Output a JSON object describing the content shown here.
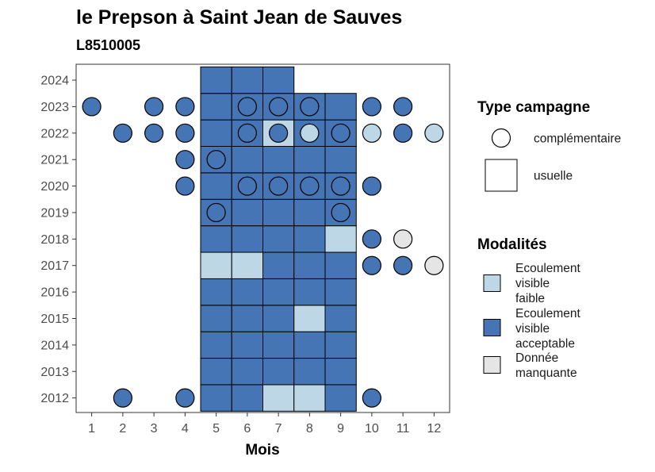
{
  "chart_data": {
    "type": "heatmap",
    "title": "le Prepson à Saint Jean de Sauves",
    "subtitle": "L8510005",
    "xlabel": "Mois",
    "x_ticks": [
      "1",
      "2",
      "3",
      "4",
      "5",
      "6",
      "7",
      "8",
      "9",
      "10",
      "11",
      "12"
    ],
    "y_ticks": [
      "2012",
      "2013",
      "2014",
      "2015",
      "2016",
      "2017",
      "2018",
      "2019",
      "2020",
      "2021",
      "2022",
      "2023",
      "2024"
    ],
    "xlim": [
      0.5,
      12.5
    ],
    "ylim": [
      2011.45,
      2024.6
    ],
    "grid": false,
    "colors": {
      "faible": "#bdd7e7",
      "acceptable": "#4575b4",
      "manquante": "#e5e5e5",
      "outline": "#000000"
    },
    "legend": {
      "type_title": "Type campagne",
      "type_items": [
        {
          "shape": "circle",
          "label": "complémentaire"
        },
        {
          "shape": "square",
          "label": "usuelle"
        }
      ],
      "mod_title": "Modalités",
      "mod_items": [
        {
          "key": "faible",
          "lines": [
            "Ecoulement",
            "visible",
            "faible"
          ]
        },
        {
          "key": "acceptable",
          "lines": [
            "Ecoulement",
            "visible",
            "acceptable"
          ]
        },
        {
          "key": "manquante",
          "lines": [
            "Donnée",
            "manquante"
          ]
        }
      ]
    },
    "tiles": [
      {
        "y": 2012,
        "m": 5,
        "v": "acceptable"
      },
      {
        "y": 2012,
        "m": 6,
        "v": "acceptable"
      },
      {
        "y": 2012,
        "m": 7,
        "v": "faible"
      },
      {
        "y": 2012,
        "m": 8,
        "v": "faible"
      },
      {
        "y": 2012,
        "m": 9,
        "v": "acceptable"
      },
      {
        "y": 2013,
        "m": 5,
        "v": "acceptable"
      },
      {
        "y": 2013,
        "m": 6,
        "v": "acceptable"
      },
      {
        "y": 2013,
        "m": 7,
        "v": "acceptable"
      },
      {
        "y": 2013,
        "m": 8,
        "v": "acceptable"
      },
      {
        "y": 2013,
        "m": 9,
        "v": "acceptable"
      },
      {
        "y": 2014,
        "m": 5,
        "v": "acceptable"
      },
      {
        "y": 2014,
        "m": 6,
        "v": "acceptable"
      },
      {
        "y": 2014,
        "m": 7,
        "v": "acceptable"
      },
      {
        "y": 2014,
        "m": 8,
        "v": "acceptable"
      },
      {
        "y": 2014,
        "m": 9,
        "v": "acceptable"
      },
      {
        "y": 2015,
        "m": 5,
        "v": "acceptable"
      },
      {
        "y": 2015,
        "m": 6,
        "v": "acceptable"
      },
      {
        "y": 2015,
        "m": 7,
        "v": "acceptable"
      },
      {
        "y": 2015,
        "m": 8,
        "v": "faible"
      },
      {
        "y": 2015,
        "m": 9,
        "v": "acceptable"
      },
      {
        "y": 2016,
        "m": 5,
        "v": "acceptable"
      },
      {
        "y": 2016,
        "m": 6,
        "v": "acceptable"
      },
      {
        "y": 2016,
        "m": 7,
        "v": "acceptable"
      },
      {
        "y": 2016,
        "m": 8,
        "v": "acceptable"
      },
      {
        "y": 2016,
        "m": 9,
        "v": "acceptable"
      },
      {
        "y": 2017,
        "m": 5,
        "v": "faible"
      },
      {
        "y": 2017,
        "m": 6,
        "v": "faible"
      },
      {
        "y": 2017,
        "m": 7,
        "v": "acceptable"
      },
      {
        "y": 2017,
        "m": 8,
        "v": "acceptable"
      },
      {
        "y": 2017,
        "m": 9,
        "v": "acceptable"
      },
      {
        "y": 2018,
        "m": 5,
        "v": "acceptable"
      },
      {
        "y": 2018,
        "m": 6,
        "v": "acceptable"
      },
      {
        "y": 2018,
        "m": 7,
        "v": "acceptable"
      },
      {
        "y": 2018,
        "m": 8,
        "v": "acceptable"
      },
      {
        "y": 2018,
        "m": 9,
        "v": "faible"
      },
      {
        "y": 2019,
        "m": 5,
        "v": "acceptable"
      },
      {
        "y": 2019,
        "m": 6,
        "v": "acceptable"
      },
      {
        "y": 2019,
        "m": 7,
        "v": "acceptable"
      },
      {
        "y": 2019,
        "m": 8,
        "v": "acceptable"
      },
      {
        "y": 2019,
        "m": 9,
        "v": "acceptable"
      },
      {
        "y": 2020,
        "m": 5,
        "v": "acceptable"
      },
      {
        "y": 2020,
        "m": 6,
        "v": "acceptable"
      },
      {
        "y": 2020,
        "m": 7,
        "v": "acceptable"
      },
      {
        "y": 2020,
        "m": 8,
        "v": "acceptable"
      },
      {
        "y": 2020,
        "m": 9,
        "v": "acceptable"
      },
      {
        "y": 2021,
        "m": 5,
        "v": "acceptable"
      },
      {
        "y": 2021,
        "m": 6,
        "v": "acceptable"
      },
      {
        "y": 2021,
        "m": 7,
        "v": "acceptable"
      },
      {
        "y": 2021,
        "m": 8,
        "v": "acceptable"
      },
      {
        "y": 2021,
        "m": 9,
        "v": "acceptable"
      },
      {
        "y": 2022,
        "m": 5,
        "v": "acceptable"
      },
      {
        "y": 2022,
        "m": 6,
        "v": "acceptable"
      },
      {
        "y": 2022,
        "m": 7,
        "v": "faible"
      },
      {
        "y": 2022,
        "m": 8,
        "v": "acceptable"
      },
      {
        "y": 2022,
        "m": 9,
        "v": "acceptable"
      },
      {
        "y": 2023,
        "m": 5,
        "v": "acceptable"
      },
      {
        "y": 2023,
        "m": 6,
        "v": "acceptable"
      },
      {
        "y": 2023,
        "m": 7,
        "v": "acceptable"
      },
      {
        "y": 2023,
        "m": 8,
        "v": "acceptable"
      },
      {
        "y": 2023,
        "m": 9,
        "v": "acceptable"
      },
      {
        "y": 2024,
        "m": 5,
        "v": "acceptable"
      },
      {
        "y": 2024,
        "m": 6,
        "v": "acceptable"
      },
      {
        "y": 2024,
        "m": 7,
        "v": "acceptable"
      }
    ],
    "points": [
      {
        "y": 2012,
        "m": 2,
        "v": "acceptable"
      },
      {
        "y": 2012,
        "m": 4,
        "v": "acceptable"
      },
      {
        "y": 2012,
        "m": 10,
        "v": "acceptable"
      },
      {
        "y": 2017,
        "m": 10,
        "v": "acceptable"
      },
      {
        "y": 2017,
        "m": 11,
        "v": "acceptable"
      },
      {
        "y": 2017,
        "m": 12,
        "v": "manquante"
      },
      {
        "y": 2018,
        "m": 10,
        "v": "acceptable"
      },
      {
        "y": 2018,
        "m": 11,
        "v": "manquante"
      },
      {
        "y": 2019,
        "m": 5,
        "v": "acceptable"
      },
      {
        "y": 2019,
        "m": 9,
        "v": "acceptable"
      },
      {
        "y": 2020,
        "m": 4,
        "v": "acceptable"
      },
      {
        "y": 2020,
        "m": 6,
        "v": "acceptable"
      },
      {
        "y": 2020,
        "m": 7,
        "v": "acceptable"
      },
      {
        "y": 2020,
        "m": 8,
        "v": "acceptable"
      },
      {
        "y": 2020,
        "m": 9,
        "v": "acceptable"
      },
      {
        "y": 2020,
        "m": 10,
        "v": "acceptable"
      },
      {
        "y": 2021,
        "m": 4,
        "v": "acceptable"
      },
      {
        "y": 2021,
        "m": 5,
        "v": "acceptable"
      },
      {
        "y": 2022,
        "m": 2,
        "v": "acceptable"
      },
      {
        "y": 2022,
        "m": 3,
        "v": "acceptable"
      },
      {
        "y": 2022,
        "m": 4,
        "v": "acceptable"
      },
      {
        "y": 2022,
        "m": 6,
        "v": "acceptable"
      },
      {
        "y": 2022,
        "m": 7,
        "v": "acceptable"
      },
      {
        "y": 2022,
        "m": 8,
        "v": "faible"
      },
      {
        "y": 2022,
        "m": 9,
        "v": "acceptable"
      },
      {
        "y": 2022,
        "m": 10,
        "v": "faible"
      },
      {
        "y": 2022,
        "m": 11,
        "v": "acceptable"
      },
      {
        "y": 2022,
        "m": 12,
        "v": "faible"
      },
      {
        "y": 2023,
        "m": 1,
        "v": "acceptable"
      },
      {
        "y": 2023,
        "m": 3,
        "v": "acceptable"
      },
      {
        "y": 2023,
        "m": 4,
        "v": "acceptable"
      },
      {
        "y": 2023,
        "m": 6,
        "v": "acceptable"
      },
      {
        "y": 2023,
        "m": 7,
        "v": "acceptable"
      },
      {
        "y": 2023,
        "m": 8,
        "v": "acceptable"
      },
      {
        "y": 2023,
        "m": 10,
        "v": "acceptable"
      },
      {
        "y": 2023,
        "m": 11,
        "v": "acceptable"
      }
    ]
  }
}
